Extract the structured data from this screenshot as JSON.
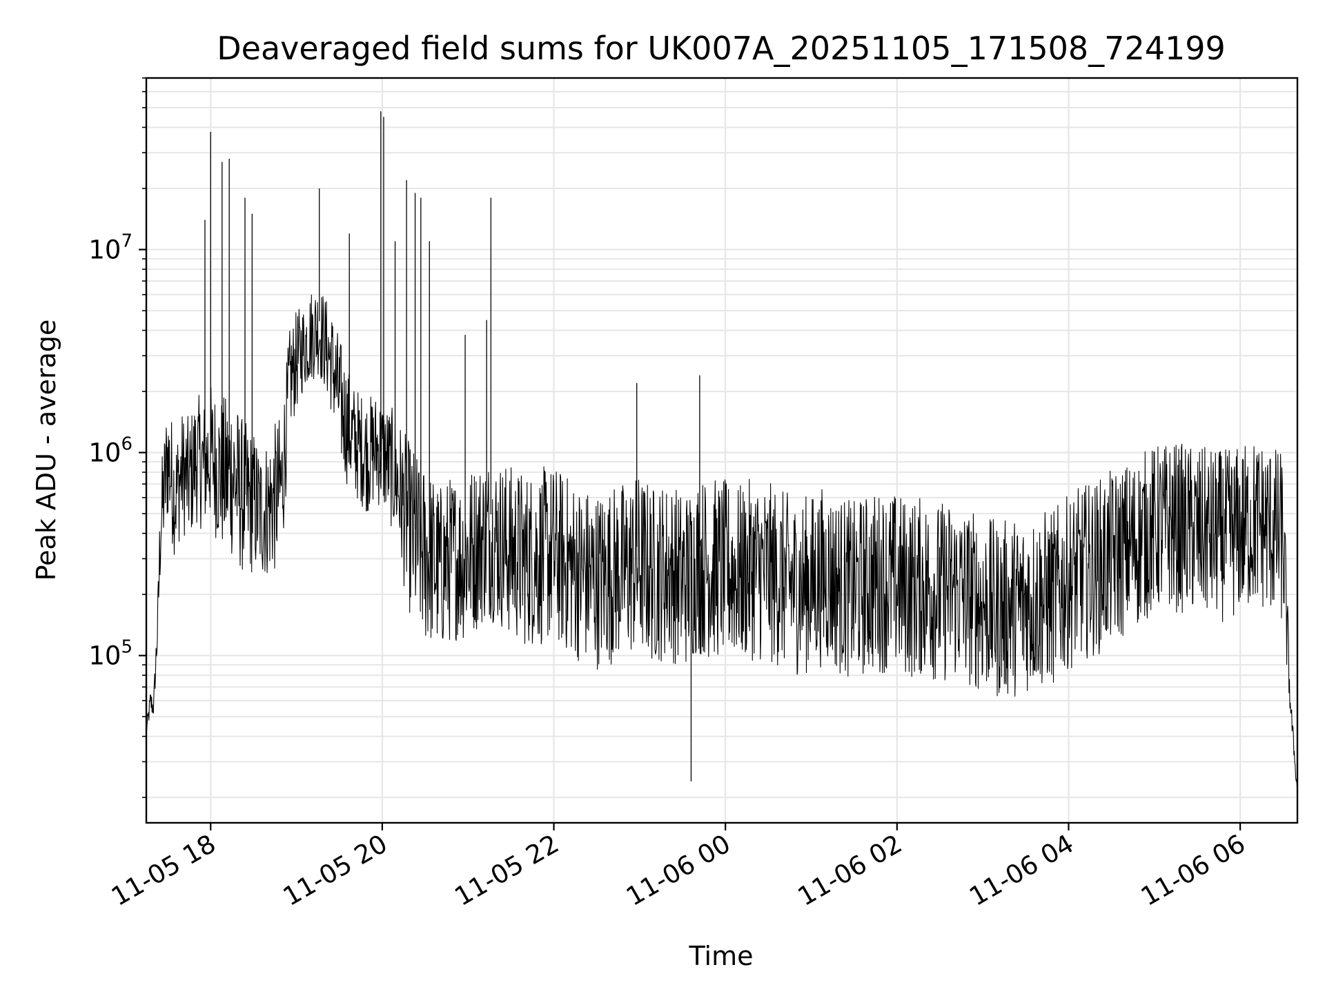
{
  "chart_data": {
    "type": "line",
    "title": "Deaveraged field sums for UK007A_20251105_171508_724199",
    "xlabel": "Time",
    "ylabel": "Peak ADU - average",
    "y_scale": "log",
    "ylim": [
      15000,
      70000000
    ],
    "xlim": [
      "2025-11-05 17:15",
      "2025-11-06 06:40"
    ],
    "grid": "on (major and minor)",
    "legend": "none",
    "line_color": "#000000",
    "grid_color": "#e6e6e6",
    "x_ticks": [
      {
        "t": "2025-11-05 18:00",
        "label": "11-05 18"
      },
      {
        "t": "2025-11-05 20:00",
        "label": "11-05 20"
      },
      {
        "t": "2025-11-05 22:00",
        "label": "11-05 22"
      },
      {
        "t": "2025-11-06 00:00",
        "label": "11-06 00"
      },
      {
        "t": "2025-11-06 02:00",
        "label": "11-06 02"
      },
      {
        "t": "2025-11-06 04:00",
        "label": "11-06 04"
      },
      {
        "t": "2025-11-06 06:00",
        "label": "11-06 06"
      }
    ],
    "y_ticks": [
      {
        "value": 100000,
        "base": "10",
        "exp": "5"
      },
      {
        "value": 1000000,
        "base": "10",
        "exp": "6"
      },
      {
        "value": 10000000,
        "base": "10",
        "exp": "7"
      }
    ],
    "series": [
      {
        "x": [
          "2025-11-05 17:15",
          "2025-11-05 17:18",
          "2025-11-05 17:20",
          "2025-11-05 17:23",
          "2025-11-05 17:25",
          "2025-11-05 17:30",
          "2025-11-05 17:35",
          "2025-11-05 17:40",
          "2025-11-05 17:45",
          "2025-11-05 17:50",
          "2025-11-05 17:55",
          "2025-11-05 18:00",
          "2025-11-05 18:05",
          "2025-11-05 18:10",
          "2025-11-05 18:15",
          "2025-11-05 18:20",
          "2025-11-05 18:25",
          "2025-11-05 18:30",
          "2025-11-05 18:35",
          "2025-11-05 18:40",
          "2025-11-05 18:45",
          "2025-11-05 18:50",
          "2025-11-05 18:55",
          "2025-11-05 19:00",
          "2025-11-05 19:05",
          "2025-11-05 19:10",
          "2025-11-05 19:15",
          "2025-11-05 19:20",
          "2025-11-05 19:25",
          "2025-11-05 19:30",
          "2025-11-05 19:35",
          "2025-11-05 19:40",
          "2025-11-05 19:45",
          "2025-11-05 19:50",
          "2025-11-05 19:55",
          "2025-11-05 20:00",
          "2025-11-05 20:05",
          "2025-11-05 20:10",
          "2025-11-05 20:15",
          "2025-11-05 20:20",
          "2025-11-05 20:25",
          "2025-11-05 20:30",
          "2025-11-05 20:35",
          "2025-11-05 20:40",
          "2025-11-05 20:45",
          "2025-11-05 20:50",
          "2025-11-05 20:55",
          "2025-11-05 21:00",
          "2025-11-05 21:05",
          "2025-11-05 21:10",
          "2025-11-05 21:15",
          "2025-11-05 21:20",
          "2025-11-05 21:25",
          "2025-11-05 21:30",
          "2025-11-05 21:40",
          "2025-11-05 21:50",
          "2025-11-05 22:00",
          "2025-11-05 22:10",
          "2025-11-05 22:20",
          "2025-11-05 22:30",
          "2025-11-05 22:40",
          "2025-11-05 22:50",
          "2025-11-05 23:00",
          "2025-11-05 23:10",
          "2025-11-05 23:20",
          "2025-11-05 23:30",
          "2025-11-05 23:35",
          "2025-11-05 23:40",
          "2025-11-05 23:50",
          "2025-11-06 00:00",
          "2025-11-06 00:10",
          "2025-11-06 00:20",
          "2025-11-06 00:30",
          "2025-11-06 00:40",
          "2025-11-06 00:50",
          "2025-11-06 01:00",
          "2025-11-06 01:10",
          "2025-11-06 01:20",
          "2025-11-06 01:30",
          "2025-11-06 01:40",
          "2025-11-06 01:50",
          "2025-11-06 02:00",
          "2025-11-06 02:10",
          "2025-11-06 02:20",
          "2025-11-06 02:30",
          "2025-11-06 02:40",
          "2025-11-06 02:50",
          "2025-11-06 03:00",
          "2025-11-06 03:10",
          "2025-11-06 03:20",
          "2025-11-06 03:30",
          "2025-11-06 03:40",
          "2025-11-06 03:50",
          "2025-11-06 04:00",
          "2025-11-06 04:10",
          "2025-11-06 04:20",
          "2025-11-06 04:30",
          "2025-11-06 04:40",
          "2025-11-06 04:50",
          "2025-11-06 05:00",
          "2025-11-06 05:10",
          "2025-11-06 05:20",
          "2025-11-06 05:30",
          "2025-11-06 05:40",
          "2025-11-06 05:50",
          "2025-11-06 06:00",
          "2025-11-06 06:10",
          "2025-11-06 06:20",
          "2025-11-06 06:30",
          "2025-11-06 06:35",
          "2025-11-06 06:40"
        ],
        "y": [
          40000,
          65000,
          55000,
          150000,
          500000,
          1100000,
          600000,
          900000,
          800000,
          1000000,
          900000,
          1000000,
          850000,
          800000,
          900000,
          700000,
          600000,
          650000,
          500000,
          550000,
          650000,
          750000,
          2000000,
          2800000,
          3200000,
          4000000,
          4500000,
          4200000,
          3500000,
          2500000,
          1500000,
          1200000,
          1100000,
          1000000,
          1050000,
          1000000,
          900000,
          750000,
          550000,
          450000,
          400000,
          350000,
          300000,
          250000,
          280000,
          320000,
          300000,
          350000,
          400000,
          450000,
          500000,
          480000,
          450000,
          420000,
          380000,
          400000,
          420000,
          350000,
          300000,
          280000,
          300000,
          320000,
          350000,
          300000,
          320000,
          280000,
          300000,
          350000,
          330000,
          320000,
          300000,
          330000,
          310000,
          280000,
          250000,
          270000,
          300000,
          260000,
          240000,
          270000,
          280000,
          270000,
          250000,
          260000,
          240000,
          250000,
          220000,
          200000,
          180000,
          190000,
          200000,
          210000,
          220000,
          260000,
          300000,
          320000,
          360000,
          400000,
          450000,
          500000,
          520000,
          510000,
          490000,
          480000,
          470000,
          500000,
          550000,
          520000,
          450000,
          60000,
          20000
        ],
        "envelope_low": [
          40000,
          50000,
          50000,
          100000,
          250000,
          450000,
          300000,
          400000,
          350000,
          450000,
          400000,
          450000,
          350000,
          300000,
          300000,
          260000,
          240000,
          250000,
          230000,
          240000,
          250000,
          300000,
          1200000,
          1600000,
          2000000,
          2200000,
          2400000,
          2000000,
          1500000,
          900000,
          700000,
          600000,
          550000,
          500000,
          550000,
          520000,
          450000,
          350000,
          220000,
          150000,
          120000,
          110000,
          110000,
          100000,
          110000,
          120000,
          115000,
          120000,
          130000,
          140000,
          150000,
          140000,
          130000,
          120000,
          110000,
          110000,
          115000,
          100000,
          90000,
          85000,
          90000,
          95000,
          100000,
          90000,
          95000,
          85000,
          90000,
          100000,
          95000,
          95000,
          90000,
          95000,
          90000,
          85000,
          80000,
          82000,
          90000,
          80000,
          75000,
          80000,
          82000,
          80000,
          76000,
          78000,
          72000,
          75000,
          70000,
          65000,
          60000,
          62000,
          65000,
          68000,
          70000,
          85000,
          95000,
          100000,
          110000,
          125000,
          140000,
          160000,
          165000,
          160000,
          150000,
          150000,
          145000,
          155000,
          170000,
          160000,
          140000,
          50000,
          20000
        ],
        "envelope_high": [
          45000,
          70000,
          60000,
          200000,
          800000,
          2000000,
          1200000,
          1600000,
          1500000,
          2000000,
          1800000,
          2200000,
          2000000,
          1900000,
          2200000,
          1600000,
          1400000,
          1300000,
          1100000,
          1200000,
          1400000,
          1600000,
          4000000,
          5000000,
          5500000,
          6500000,
          7000000,
          6000000,
          5000000,
          3800000,
          2800000,
          2200000,
          2000000,
          1900000,
          2000000,
          1900000,
          1700000,
          1600000,
          1300000,
          1100000,
          1000000,
          900000,
          800000,
          700000,
          750000,
          800000,
          780000,
          850000,
          900000,
          950000,
          1000000,
          950000,
          920000,
          880000,
          820000,
          850000,
          880000,
          780000,
          700000,
          660000,
          700000,
          740000,
          800000,
          700000,
          740000,
          660000,
          700000,
          780000,
          760000,
          740000,
          700000,
          760000,
          720000,
          660000,
          600000,
          640000,
          700000,
          620000,
          580000,
          640000,
          660000,
          640000,
          600000,
          620000,
          580000,
          600000,
          540000,
          500000,
          460000,
          480000,
          500000,
          520000,
          540000,
          620000,
          700000,
          740000,
          820000,
          900000,
          1000000,
          1100000,
          1150000,
          1120000,
          1080000,
          1060000,
          1040000,
          1100000,
          1200000,
          1150000,
          1000000,
          70000,
          22000
        ]
      }
    ],
    "spikes": [
      {
        "x": "2025-11-05 18:00",
        "y": 38000000
      },
      {
        "x": "2025-11-05 17:56",
        "y": 14000000
      },
      {
        "x": "2025-11-05 18:08",
        "y": 27000000
      },
      {
        "x": "2025-11-05 18:13",
        "y": 28000000
      },
      {
        "x": "2025-11-05 18:24",
        "y": 18000000
      },
      {
        "x": "2025-11-05 18:29",
        "y": 15000000
      },
      {
        "x": "2025-11-05 19:16",
        "y": 20000000
      },
      {
        "x": "2025-11-05 19:37",
        "y": 12000000
      },
      {
        "x": "2025-11-05 19:59",
        "y": 48000000
      },
      {
        "x": "2025-11-05 20:01",
        "y": 45000000
      },
      {
        "x": "2025-11-05 20:09",
        "y": 11000000
      },
      {
        "x": "2025-11-05 20:17",
        "y": 22000000
      },
      {
        "x": "2025-11-05 20:23",
        "y": 19000000
      },
      {
        "x": "2025-11-05 20:27",
        "y": 18000000
      },
      {
        "x": "2025-11-05 20:33",
        "y": 11000000
      },
      {
        "x": "2025-11-05 20:58",
        "y": 3800000
      },
      {
        "x": "2025-11-05 21:13",
        "y": 4500000
      },
      {
        "x": "2025-11-05 21:16",
        "y": 18000000
      },
      {
        "x": "2025-11-05 22:58",
        "y": 2200000
      },
      {
        "x": "2025-11-05 23:42",
        "y": 2400000
      },
      {
        "x": "2025-11-05 23:36",
        "y": 24000
      }
    ]
  }
}
